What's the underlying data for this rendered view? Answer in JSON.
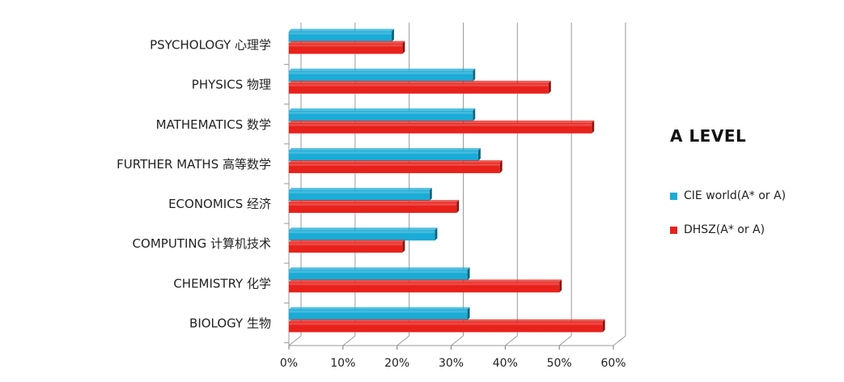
{
  "chart_data": {
    "type": "bar",
    "orientation": "horizontal",
    "title": "A LEVEL",
    "categories": [
      "PSYCHOLOGY 心理学",
      "PHYSICS 物理",
      "MATHEMATICS  数学",
      "FURTHER MATHS  高等数学",
      "ECONOMICS 经济",
      "COMPUTING  计算机技术",
      "CHEMISTRY  化学",
      "BIOLOGY 生物"
    ],
    "series": [
      {
        "name": "CIE world(A* or A)",
        "color": "#1aabd6",
        "values": [
          0.19,
          0.34,
          0.34,
          0.35,
          0.26,
          0.27,
          0.33,
          0.33
        ]
      },
      {
        "name": "DHSZ(A* or A)",
        "color": "#e8211b",
        "values": [
          0.21,
          0.48,
          0.56,
          0.39,
          0.31,
          0.21,
          0.5,
          0.58
        ]
      }
    ],
    "xlim": [
      0,
      0.6
    ],
    "xticks": [
      "0%",
      "10%",
      "20%",
      "30%",
      "40%",
      "50%",
      "60%"
    ],
    "grid": true,
    "legend_position": "right"
  }
}
